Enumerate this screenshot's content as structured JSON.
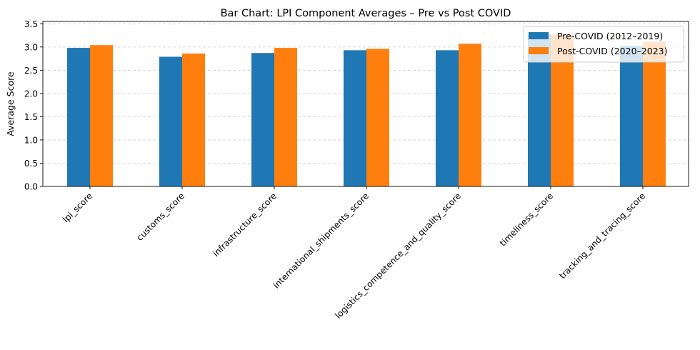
{
  "chart_data": {
    "type": "bar",
    "title": "Bar Chart: LPI Component Averages – Pre vs Post COVID",
    "xlabel": "",
    "ylabel": "Average Score",
    "ylim": [
      0,
      3.55
    ],
    "yticks": [
      "0.0",
      "0.5",
      "1.0",
      "1.5",
      "2.0",
      "2.5",
      "3.0",
      "3.5"
    ],
    "grid": "y-dashed",
    "legend_position": "top-right",
    "categories": [
      "lpi_score",
      "customs_score",
      "infrastructure_score",
      "international_shipments_score",
      "logistics_competence_and_quality_score",
      "timeliness_score",
      "tracking_and_tracing_score"
    ],
    "series": [
      {
        "name": "Pre-COVID (2012–2019)",
        "color": "#1f77b4",
        "values": [
          2.98,
          2.79,
          2.87,
          2.93,
          2.93,
          3.27,
          3.02
        ]
      },
      {
        "name": "Post-COVID (2020–2023)",
        "color": "#ff7f0e",
        "values": [
          3.04,
          2.86,
          2.98,
          2.96,
          3.07,
          3.27,
          3.11
        ]
      }
    ]
  }
}
